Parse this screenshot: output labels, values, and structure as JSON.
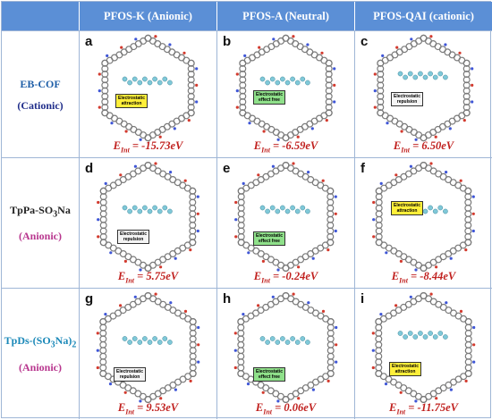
{
  "headers": [
    "PFOS-K (Anionic)",
    "PFOS-A (Neutral)",
    "PFOS-QAI (cationic)"
  ],
  "rows": [
    {
      "name_main": "EB-COF",
      "name_sub": "",
      "name_charge": "(Cationic)",
      "colors": {
        "main": "#1f5fa8",
        "charge": "#1f2d8a"
      },
      "cells": [
        {
          "letter": "a",
          "energy": "= -15.73eV",
          "tag_lines": [
            "Electrostatic",
            "attraction"
          ],
          "tag_color": "yellow"
        },
        {
          "letter": "b",
          "energy": "= -6.59eV",
          "tag_lines": [
            "Electrostatic",
            "effect free"
          ],
          "tag_color": "green"
        },
        {
          "letter": "c",
          "energy": "= 6.50eV",
          "tag_lines": [
            "Electrostatic",
            "repulsion"
          ],
          "tag_color": "white"
        }
      ]
    },
    {
      "name_main": "TpPa-SO",
      "name_sub": "3",
      "name_tail": "Na",
      "name_charge": "(Anionic)",
      "colors": {
        "main": "#222222",
        "charge": "#b8368e"
      },
      "cells": [
        {
          "letter": "d",
          "energy": "= 5.75eV",
          "tag_lines": [
            "Electrostatic",
            "repulsion"
          ],
          "tag_color": "white"
        },
        {
          "letter": "e",
          "energy": "= -0.24eV",
          "tag_lines": [
            "Electrostatic",
            "effect free"
          ],
          "tag_color": "green"
        },
        {
          "letter": "f",
          "energy": "= -8.44eV",
          "tag_lines": [
            "Electrostatic",
            "attraction"
          ],
          "tag_color": "yellow"
        }
      ]
    },
    {
      "name_main": "TpDs-(SO",
      "name_sub": "3",
      "name_tail": "Na)",
      "name_sub2": "2",
      "name_charge": "(Anionic)",
      "colors": {
        "main": "#1a88b8",
        "charge": "#b8368e"
      },
      "cells": [
        {
          "letter": "g",
          "energy": "= 9.53eV",
          "tag_lines": [
            "Electrostatic",
            "repulsion"
          ],
          "tag_color": "white"
        },
        {
          "letter": "h",
          "energy": "= 0.06eV",
          "tag_lines": [
            "Electrostatic",
            "effect free"
          ],
          "tag_color": "green"
        },
        {
          "letter": "i",
          "energy": "= -11.75eV",
          "tag_lines": [
            "Electrostatic",
            "attraction"
          ],
          "tag_color": "yellow"
        }
      ]
    }
  ],
  "energy_symbol": "E",
  "energy_subscript": "Int",
  "colors": {
    "header_bg": "#5b8fd6",
    "energy": "#c0201e",
    "grid_line": "#9fb6d6"
  }
}
